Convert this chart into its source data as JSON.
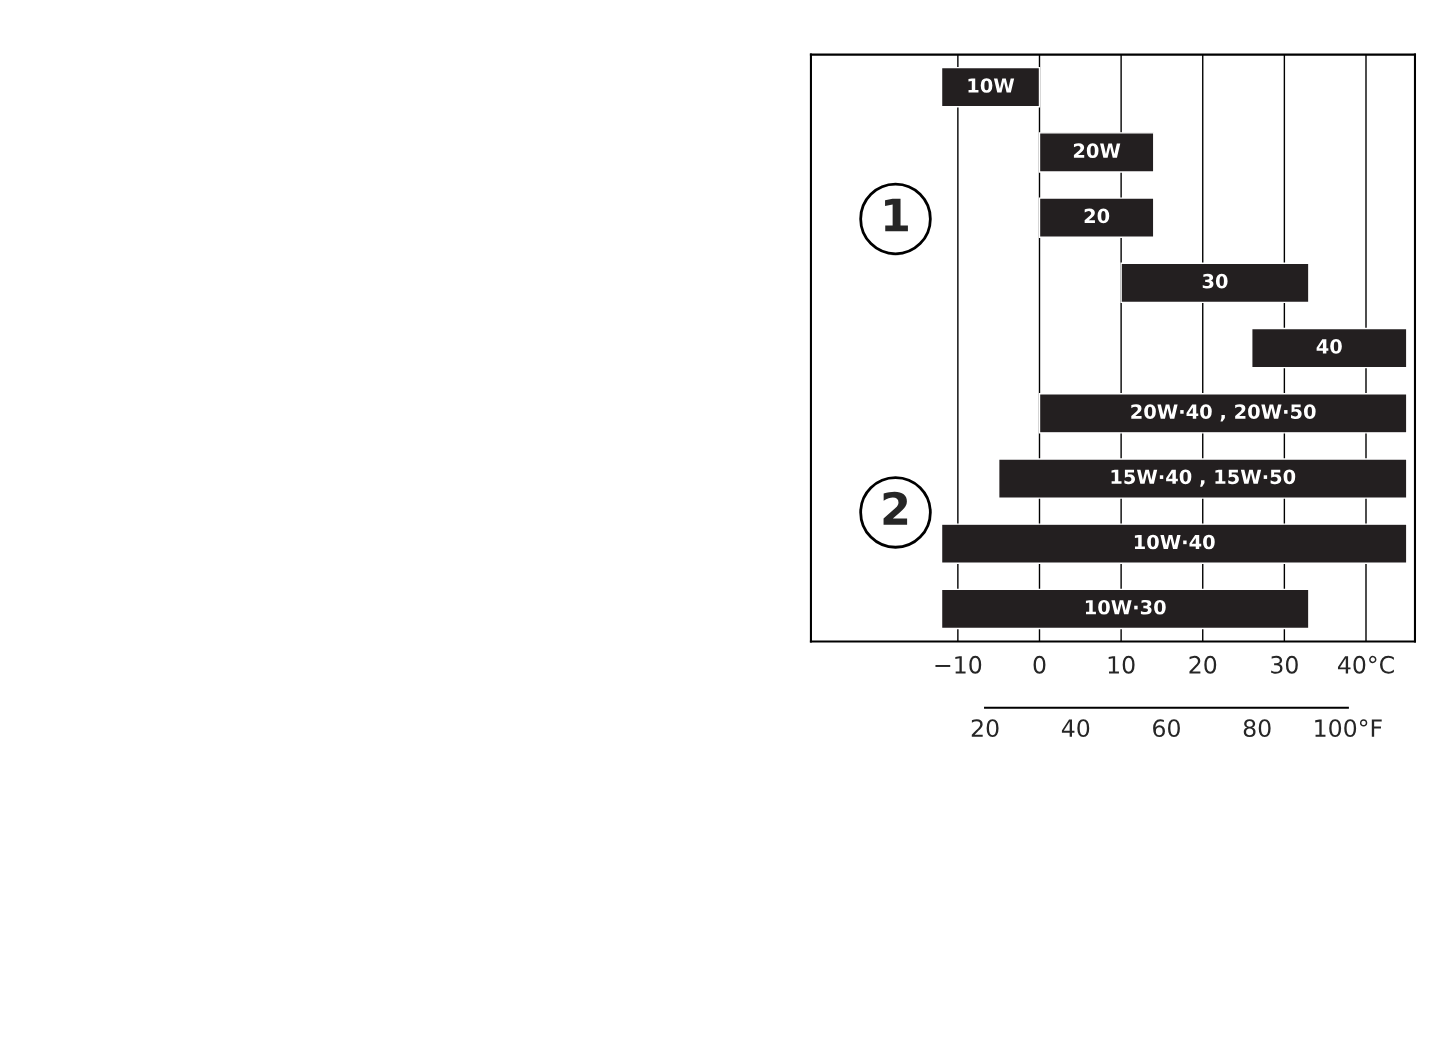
{
  "chart_data": {
    "type": "bar",
    "orientation": "horizontal",
    "categories": [
      "10W",
      "20W",
      "20",
      "30",
      "40",
      "20W·40 , 20W·50",
      "15W·40 , 15W·50",
      "10W·40",
      "10W·30"
    ],
    "base": [
      -12,
      0,
      0,
      10,
      26,
      0,
      -5,
      -12,
      -12
    ],
    "values": [
      12,
      14,
      14,
      23,
      19,
      45,
      50,
      57,
      45
    ],
    "color": "#231f20",
    "xlim": [
      -28,
      46
    ],
    "xticks": [
      {
        "value": -10,
        "label": "−10"
      },
      0,
      10,
      20,
      30,
      {
        "value": 40,
        "label": "40°C"
      }
    ],
    "x2lim": [
      -18.4,
      114.8
    ],
    "x2ticks": [
      20,
      40,
      60,
      80,
      {
        "value": 100,
        "label": "100°F"
      }
    ],
    "grid": "x",
    "tick_labels": "x",
    "annotations": [
      "1",
      "2"
    ]
  }
}
